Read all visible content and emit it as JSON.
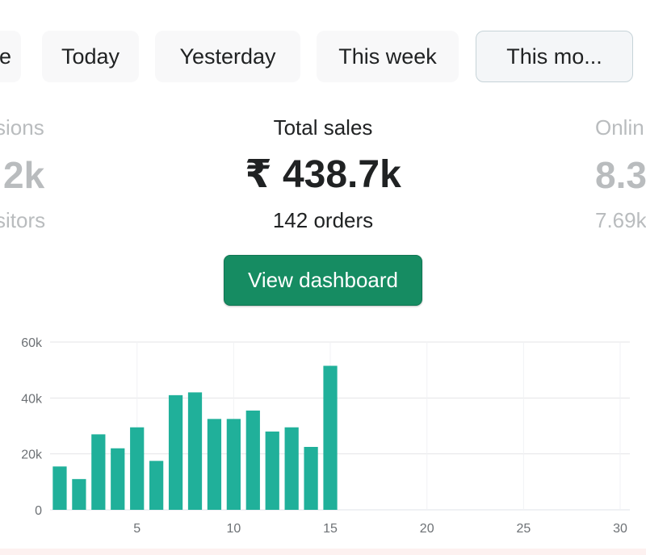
{
  "tabs": {
    "partial_left": "e",
    "today": "Today",
    "yesterday": "Yesterday",
    "this_week": "This week",
    "this_month": "This mo..."
  },
  "left_metric": {
    "label": "sions",
    "value": "2k",
    "sub": "sitors"
  },
  "total_sales": {
    "label": "Total sales",
    "value": "₹ 438.7k",
    "orders": "142 orders"
  },
  "right_metric": {
    "label": "Onlin",
    "value": "8.3",
    "sub": "7.69k"
  },
  "view_dashboard_label": "View dashboard",
  "colors": {
    "accent": "#168c62",
    "bar": "#20b09a"
  },
  "chart_data": {
    "type": "bar",
    "x": [
      1,
      2,
      3,
      4,
      5,
      6,
      7,
      8,
      9,
      10,
      11,
      12,
      13,
      14,
      15,
      16,
      17,
      18,
      19,
      20,
      21,
      22,
      23,
      24,
      25,
      26,
      27,
      28,
      29,
      30
    ],
    "values": [
      15500,
      11000,
      27000,
      22000,
      29500,
      17500,
      41000,
      42000,
      32500,
      32500,
      35500,
      28000,
      29500,
      22500,
      51500,
      0,
      0,
      0,
      0,
      0,
      0,
      0,
      0,
      0,
      0,
      0,
      0,
      0,
      0,
      0
    ],
    "ylim": [
      0,
      60000
    ],
    "ytick_labels": [
      "0",
      "20k",
      "40k",
      "60k"
    ],
    "ytick_values": [
      0,
      20000,
      40000,
      60000
    ],
    "xtick_labels": [
      "5",
      "10",
      "15",
      "20",
      "25",
      "30"
    ],
    "xtick_values": [
      5,
      10,
      15,
      20,
      25,
      30
    ],
    "grid": true
  }
}
